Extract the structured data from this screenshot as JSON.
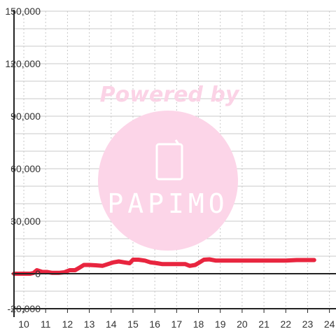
{
  "chart_data": {
    "type": "line",
    "title": "",
    "xlabel": "",
    "ylabel": "",
    "xlim": [
      9.55,
      24.3
    ],
    "ylim": [
      -20000,
      150000
    ],
    "x_ticks": [
      10,
      11,
      12,
      13,
      14,
      15,
      16,
      17,
      18,
      19,
      20,
      21,
      22,
      23,
      24
    ],
    "x_tick_labels": [
      "10",
      "11",
      "12",
      "13",
      "14",
      "15",
      "16",
      "17",
      "18",
      "19",
      "20",
      "21",
      "22",
      "23",
      "24"
    ],
    "y_ticks": [
      -20000,
      0,
      30000,
      60000,
      90000,
      120000,
      150000
    ],
    "y_tick_labels": [
      "-20,000",
      "0",
      "30,000",
      "60,000",
      "90,000",
      "120,000",
      "150,000"
    ],
    "series": [
      {
        "color": "#e8253f",
        "x": [
          9.55,
          9.9,
          10.1,
          10.3,
          10.45,
          10.6,
          10.85,
          11.05,
          11.3,
          11.6,
          11.85,
          12.1,
          12.35,
          12.55,
          12.75,
          13.0,
          13.3,
          13.6,
          13.85,
          14.1,
          14.35,
          14.6,
          14.85,
          15.0,
          15.25,
          15.55,
          15.8,
          16.1,
          16.35,
          16.6,
          16.9,
          17.15,
          17.4,
          17.6,
          17.85,
          18.05,
          18.25,
          18.5,
          18.8,
          19.2,
          19.6,
          20.0,
          20.5,
          21.0,
          21.5,
          22.0,
          22.5,
          22.9,
          23.3
        ],
        "y": [
          0,
          0,
          0,
          0,
          500,
          2000,
          1000,
          1000,
          500,
          500,
          800,
          2000,
          2000,
          3500,
          5000,
          5000,
          4800,
          4500,
          5500,
          6500,
          7000,
          6500,
          6000,
          8000,
          8000,
          7500,
          6500,
          6000,
          5500,
          5500,
          5500,
          5500,
          5500,
          4500,
          5000,
          6500,
          8000,
          8200,
          7500,
          7500,
          7500,
          7500,
          7500,
          7500,
          7500,
          7500,
          7800,
          7800,
          7800
        ]
      }
    ],
    "grid": true,
    "watermark": {
      "text": "Powered by",
      "logo_text": "PAPIMO"
    }
  }
}
